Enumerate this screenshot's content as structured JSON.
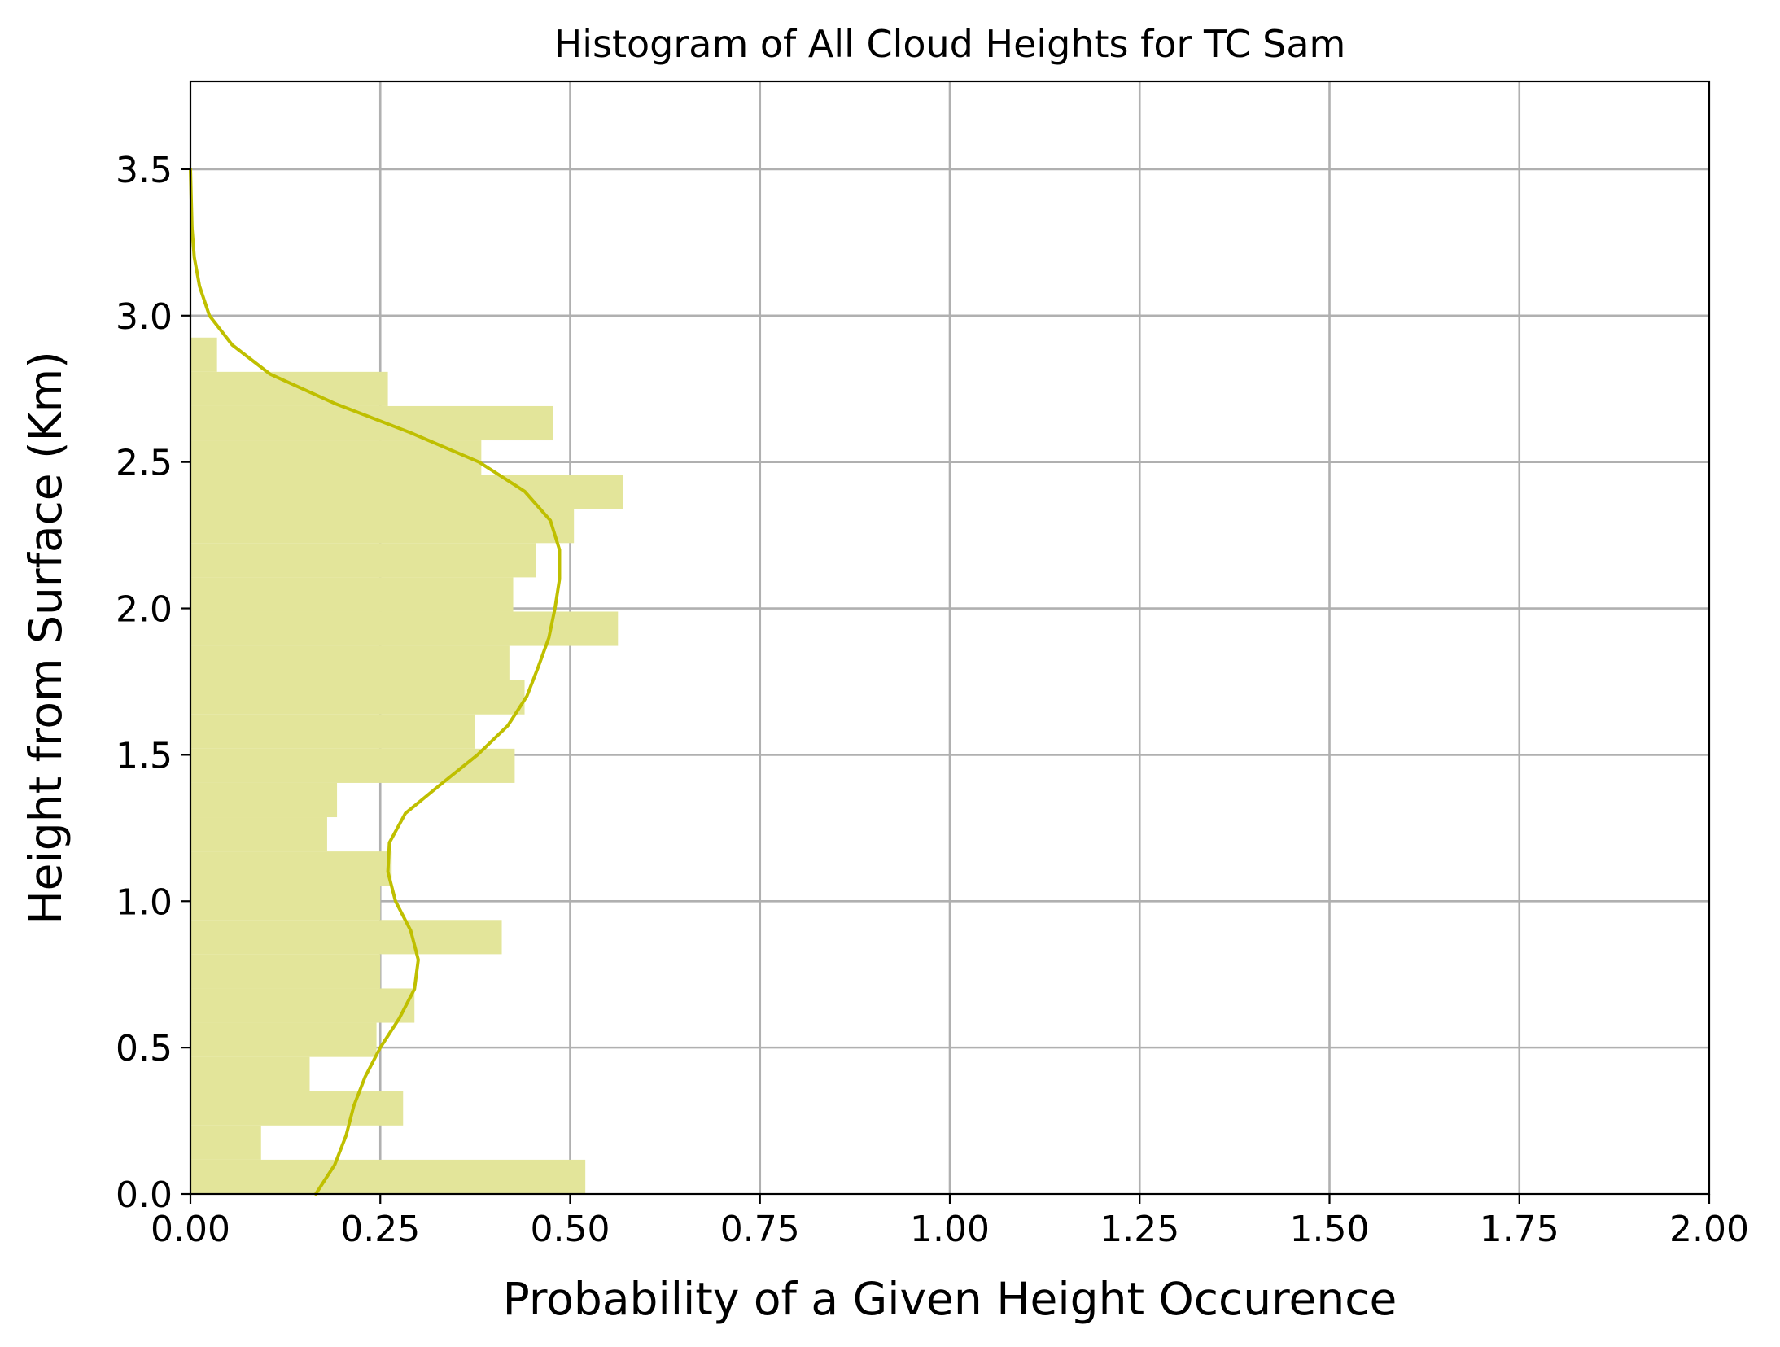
{
  "chart_data": {
    "type": "bar",
    "orientation": "horizontal",
    "title": "Histogram of All Cloud Heights for TC Sam",
    "xlabel": "Probability of a Given Height Occurence",
    "ylabel": "Height from Surface (Km)",
    "xlim": [
      0,
      2
    ],
    "ylim": [
      0,
      3.8
    ],
    "grid": true,
    "xticks": [
      0.0,
      0.25,
      0.5,
      0.75,
      1.0,
      1.25,
      1.5,
      1.75,
      2.0
    ],
    "xtick_labels": [
      "0.00",
      "0.25",
      "0.50",
      "0.75",
      "1.00",
      "1.25",
      "1.50",
      "1.75",
      "2.00"
    ],
    "yticks": [
      0.0,
      0.5,
      1.0,
      1.5,
      2.0,
      2.5,
      3.0,
      3.5
    ],
    "ytick_labels": [
      "0.0",
      "0.5",
      "1.0",
      "1.5",
      "2.0",
      "2.5",
      "3.0",
      "3.5"
    ],
    "histogram": {
      "bin_edges": [
        0.0,
        0.117,
        0.234,
        0.351,
        0.468,
        0.585,
        0.702,
        0.819,
        0.936,
        1.053,
        1.17,
        1.287,
        1.404,
        1.521,
        1.638,
        1.755,
        1.872,
        1.989,
        2.106,
        2.223,
        2.34,
        2.457,
        2.574,
        2.691,
        2.808,
        2.925
      ],
      "values": [
        0.52,
        0.093,
        0.28,
        0.157,
        0.245,
        0.295,
        0.25,
        0.41,
        0.25,
        0.265,
        0.18,
        0.193,
        0.427,
        0.375,
        0.44,
        0.42,
        0.563,
        0.425,
        0.455,
        0.505,
        0.57,
        0.383,
        0.477,
        0.26,
        0.035
      ],
      "color": "#e3e59a"
    },
    "kde": {
      "y": [
        0.0,
        0.1,
        0.2,
        0.3,
        0.4,
        0.5,
        0.6,
        0.7,
        0.8,
        0.9,
        1.0,
        1.1,
        1.2,
        1.3,
        1.4,
        1.5,
        1.6,
        1.7,
        1.8,
        1.9,
        2.0,
        2.1,
        2.2,
        2.3,
        2.4,
        2.5,
        2.6,
        2.7,
        2.8,
        2.9,
        3.0,
        3.1,
        3.2,
        3.3,
        3.4,
        3.5
      ],
      "x": [
        0.165,
        0.19,
        0.205,
        0.215,
        0.23,
        0.25,
        0.275,
        0.295,
        0.3,
        0.29,
        0.27,
        0.26,
        0.262,
        0.283,
        0.33,
        0.378,
        0.418,
        0.443,
        0.458,
        0.472,
        0.48,
        0.486,
        0.486,
        0.474,
        0.44,
        0.38,
        0.29,
        0.19,
        0.105,
        0.055,
        0.025,
        0.012,
        0.005,
        0.002,
        0.001,
        0.0
      ],
      "color": "#bfbf00"
    }
  }
}
